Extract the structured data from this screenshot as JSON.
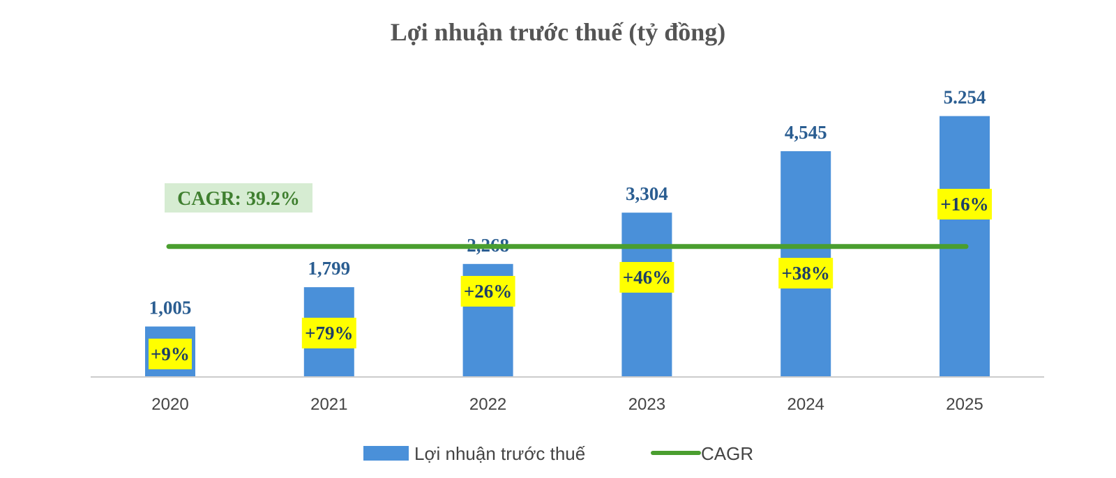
{
  "chart_data": {
    "type": "bar",
    "title": "Lợi nhuận trước thuế (tỷ đồng)",
    "xlabel": "",
    "ylabel": "",
    "ylim": [
      0,
      5600
    ],
    "grid": false,
    "categories": [
      "2020",
      "2021",
      "2022",
      "2023",
      "2024",
      "2025"
    ],
    "series": [
      {
        "name": "Lợi nhuận trước thuế",
        "values": [
          1005,
          1799,
          2268,
          3304,
          4545,
          5254
        ],
        "labels": [
          "1,005",
          "1,799",
          "2,268",
          "3,304",
          "4,545",
          "5.254"
        ],
        "color": "#4a90d9"
      },
      {
        "name": "CAGR",
        "type": "line",
        "value": 2620,
        "color": "#4a9e2f"
      }
    ],
    "growth_labels": [
      "+9%",
      "+79%",
      "+26%",
      "+46%",
      "+38%",
      "+16%"
    ],
    "growth_label_color": "#ffff00",
    "annotation": "CAGR: 39.2%",
    "annotation_bg": "#d6ecd2",
    "legend": {
      "placement": "bottom",
      "entries": [
        "Lợi nhuận trước thuế",
        "CAGR"
      ]
    }
  }
}
